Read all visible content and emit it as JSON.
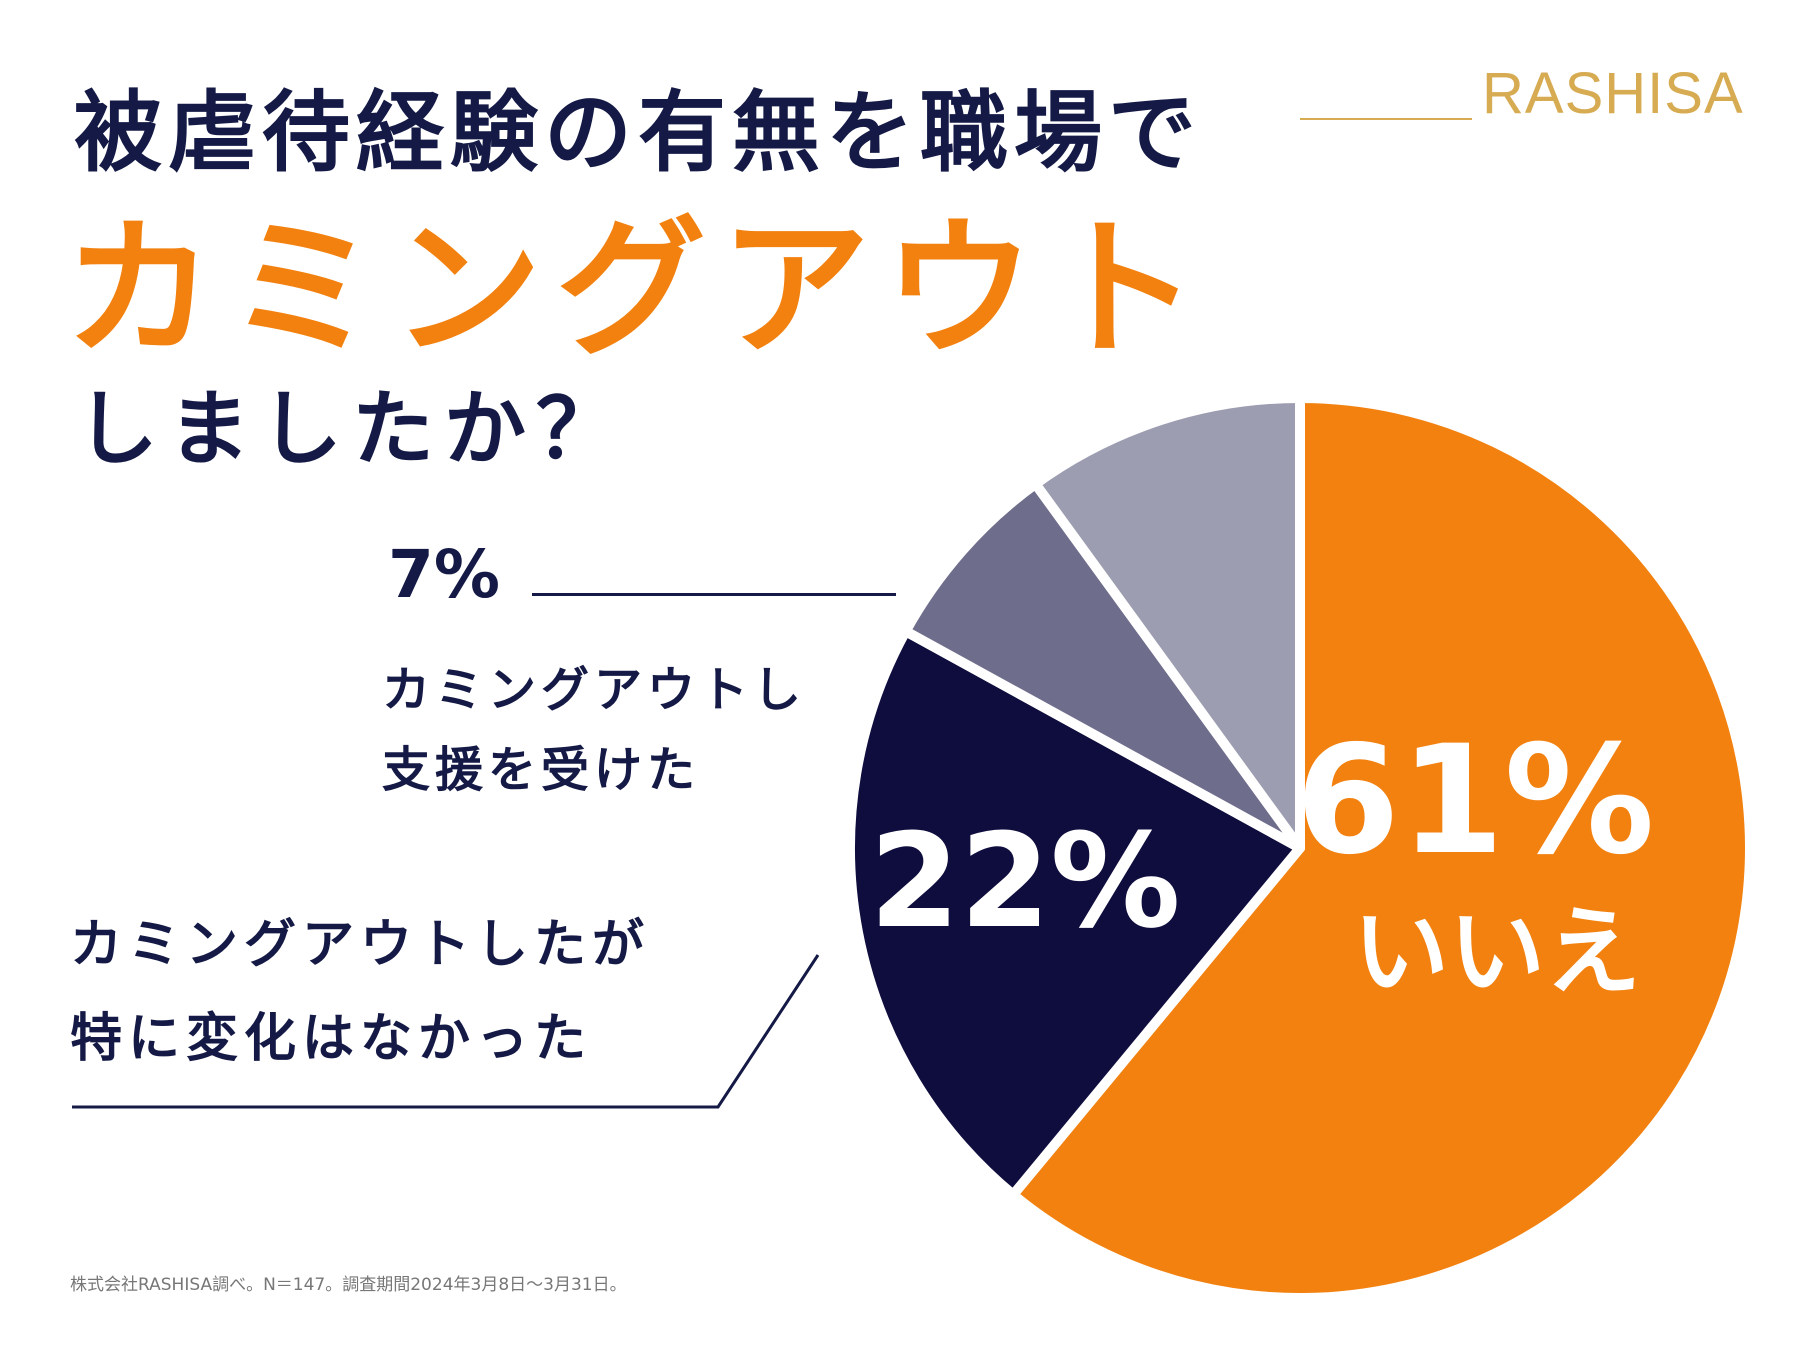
{
  "title": {
    "line1": "被虐待経験の有無を職場で",
    "line2": "カミングアウト",
    "line3": "しましたか？"
  },
  "brand": {
    "name": "RASHISA",
    "color": "#d6ab52"
  },
  "colors": {
    "navy": "#141a45",
    "accent": "#f2810f"
  },
  "chart_data": {
    "type": "pie",
    "slices": [
      {
        "label": "いいえ",
        "value": 61,
        "display": "61%",
        "color": "#f2810f"
      },
      {
        "label": "カミングアウトしたが特に変化はなかった",
        "value": 22,
        "display": "22%",
        "color": "#0f0d3d"
      },
      {
        "label": "カミングアウトし支援を受けた",
        "value": 7,
        "display": "7%",
        "color": "#6e6d8b"
      },
      {
        "label": "",
        "value": 10,
        "display": "",
        "color": "#9c9db1"
      }
    ],
    "start_angle_deg": 0,
    "direction": "clockwise"
  },
  "callouts": {
    "supported_pct": "7%",
    "supported_line1": "カミングアウトし",
    "supported_line2": "支援を受けた",
    "nochange_line1": "カミングアウトしたが",
    "nochange_line2": "特に変化はなかった"
  },
  "source_note": "株式会社RASHISA調べ。N＝147。調査期間2024年3月8日〜3月31日。"
}
